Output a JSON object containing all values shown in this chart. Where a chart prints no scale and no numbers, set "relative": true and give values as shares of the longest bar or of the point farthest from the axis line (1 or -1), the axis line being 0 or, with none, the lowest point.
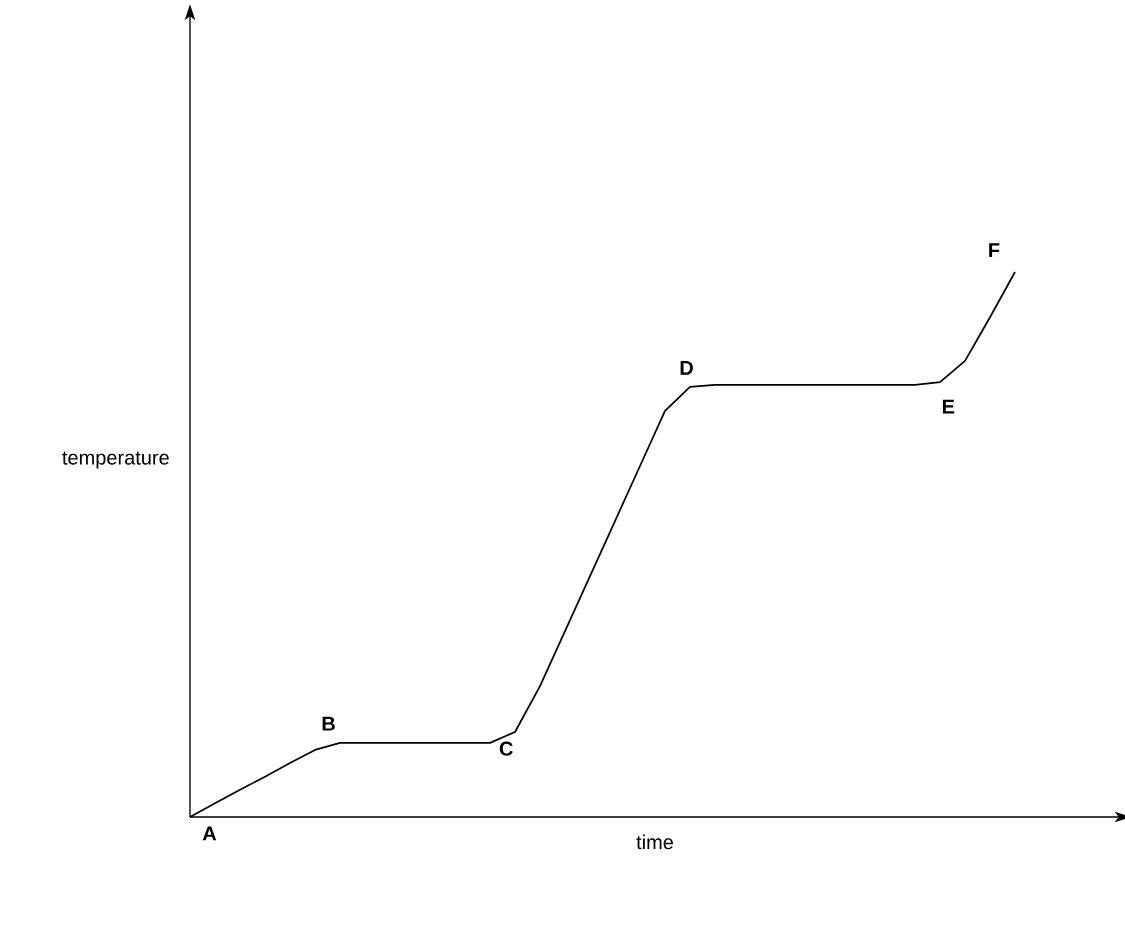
{
  "chart_data": {
    "type": "line",
    "relative": true,
    "xlabel": "time",
    "ylabel": "temperature",
    "color": "#000000",
    "categories": [
      null,
      null,
      null,
      null,
      null,
      null,
      null,
      null,
      null,
      null,
      null,
      null,
      null,
      null,
      null,
      null,
      null,
      null,
      null,
      null,
      null,
      null,
      null,
      null,
      null,
      null,
      null,
      null,
      null,
      null,
      null,
      null,
      null,
      null
    ],
    "values": [
      0,
      0.025,
      0.05,
      0.074,
      0.099,
      0.123,
      0.136,
      0.136,
      0.136,
      0.136,
      0.136,
      0.136,
      0.136,
      0.156,
      0.24,
      0.341,
      0.442,
      0.543,
      0.644,
      0.745,
      0.789,
      0.793,
      0.793,
      0.793,
      0.793,
      0.793,
      0.793,
      0.793,
      0.793,
      0.793,
      0.798,
      0.837,
      0.917,
      1
    ],
    "annotations": [
      "A",
      "B",
      "C",
      "D",
      "E",
      "F"
    ]
  }
}
